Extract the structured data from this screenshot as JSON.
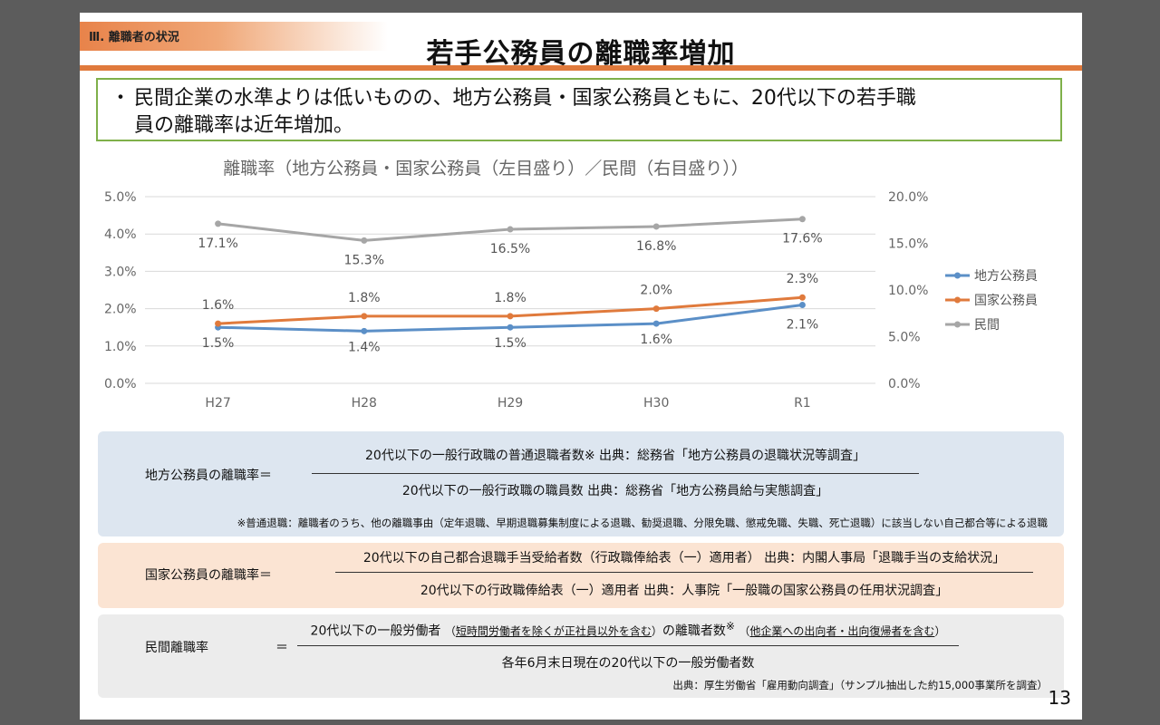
{
  "header": {
    "section_tag": "Ⅲ. 離職者の状況",
    "title": "若手公務員の離職率増加"
  },
  "summary": {
    "bullet": "・",
    "line1": "民間企業の水準よりは低いものの、地方公務員・国家公務員ともに、20代以下の若手職",
    "line2": "員の離職率は近年増加。"
  },
  "colors": {
    "local": "#5b8fc7",
    "national": "#e07a3c",
    "private": "#a6a6a6",
    "accent": "#e07a3c",
    "summary_border": "#7fb04a"
  },
  "chart_data": {
    "type": "line",
    "title": "離職率（地方公務員・国家公務員（左目盛り）／民間（右目盛り））",
    "categories": [
      "H27",
      "H28",
      "H29",
      "H30",
      "R1"
    ],
    "left_axis": {
      "ticks": [
        "5.0%",
        "4.0%",
        "3.0%",
        "2.0%",
        "1.0%",
        "0.0%"
      ],
      "ylim": [
        0,
        5
      ]
    },
    "right_axis": {
      "ticks": [
        "20.0%",
        "15.0%",
        "10.0%",
        "5.0%",
        "0.0%"
      ],
      "ylim": [
        0,
        20
      ]
    },
    "legend_position": "right",
    "series": [
      {
        "name": "地方公務員",
        "axis": "left",
        "values": [
          1.5,
          1.4,
          1.5,
          1.6,
          2.1
        ],
        "labels": [
          "1.5%",
          "1.4%",
          "1.5%",
          "1.6%",
          "2.1%"
        ]
      },
      {
        "name": "国家公務員",
        "axis": "left",
        "values": [
          1.6,
          1.8,
          1.8,
          2.0,
          2.3
        ],
        "labels": [
          "1.6%",
          "1.8%",
          "1.8%",
          "2.0%",
          "2.3%"
        ]
      },
      {
        "name": "民間",
        "axis": "right",
        "values": [
          17.1,
          15.3,
          16.5,
          16.8,
          17.6
        ],
        "labels": [
          "17.1%",
          "15.3%",
          "16.5%",
          "16.8%",
          "17.6%"
        ]
      }
    ]
  },
  "formulas": {
    "local": {
      "label": "地方公務員の離職率＝",
      "numerator": "20代以下の一般行政職の普通退職者数※ 出典：総務省「地方公務員の退職状況等調査」",
      "denominator": "20代以下の一般行政職の職員数 出典：総務省「地方公務員給与実態調査」",
      "note": "※普通退職：離職者のうち、他の離職事由（定年退職、早期退職募集制度による退職、勧奨退職、分限免職、懲戒免職、失職、死亡退職）に該当しない自己都合等による退職"
    },
    "national": {
      "label": "国家公務員の離職率＝",
      "numerator": "20代以下の自己都合退職手当受給者数（行政職俸給表（一）適用者） 出典：内閣人事局「退職手当の支給状況」",
      "denominator": "20代以下の行政職俸給表（一）適用者 出典：人事院「一般職の国家公務員の任用状況調査」"
    },
    "private": {
      "label": "民間離職率",
      "equals": "＝",
      "numerator_main": "20代以下の一般労働者",
      "numerator_paren_open": "（",
      "numerator_paren1": "短時間労働者を除くが",
      "numerator_paren2": "正社員以外を含む",
      "numerator_paren_close": "）",
      "numerator_mid": "の離職者数",
      "numerator_mark": "※",
      "numerator_paren3": "他企業への出向者・出向復帰者を含む",
      "denominator": "各年6月末日現在の20代以下の一般労働者数",
      "source": "出典：厚生労働省「雇用動向調査」（サンプル抽出した約15,000事業所を調査）"
    }
  },
  "page_number": "13"
}
